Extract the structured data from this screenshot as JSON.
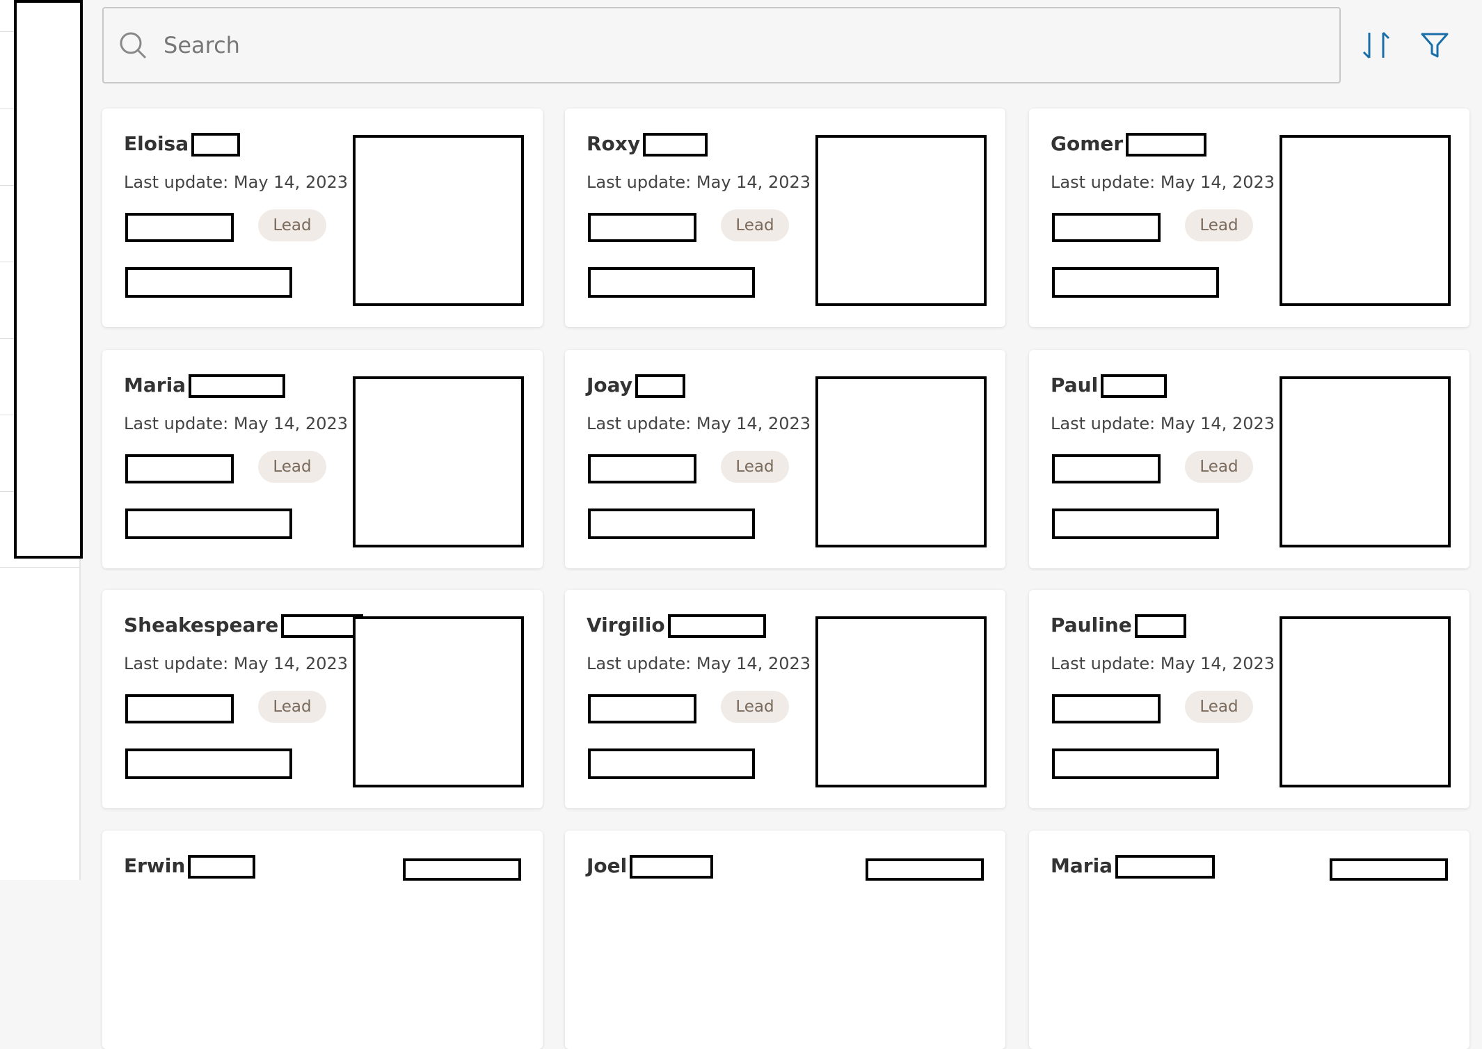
{
  "search": {
    "placeholder": "Search"
  },
  "cards": [
    {
      "name": "Eloisa",
      "last_update": "Last update: May 14, 2023",
      "tag": "Lead"
    },
    {
      "name": "Roxy",
      "last_update": "Last update: May 14, 2023",
      "tag": "Lead"
    },
    {
      "name": "Gomer",
      "last_update": "Last update: May 14, 2023",
      "tag": "Lead"
    },
    {
      "name": "Maria",
      "last_update": "Last update: May 14, 2023",
      "tag": "Lead"
    },
    {
      "name": "Joay",
      "last_update": "Last update: May 14, 2023",
      "tag": "Lead"
    },
    {
      "name": "Paul",
      "last_update": "Last update: May 14, 2023",
      "tag": "Lead"
    },
    {
      "name": "Sheakespeare",
      "last_update": "Last update: May 14, 2023",
      "tag": "Lead"
    },
    {
      "name": "Virgilio",
      "last_update": "Last update: May 14, 2023",
      "tag": "Lead"
    },
    {
      "name": "Pauline",
      "last_update": "Last update: May 14, 2023",
      "tag": "Lead"
    },
    {
      "name": "Erwin"
    },
    {
      "name": "Joel"
    },
    {
      "name": "Maria"
    }
  ]
}
